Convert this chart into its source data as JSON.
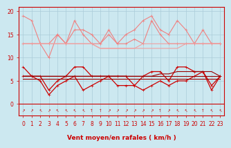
{
  "x": [
    0,
    1,
    2,
    3,
    4,
    5,
    6,
    7,
    8,
    9,
    10,
    11,
    12,
    13,
    14,
    15,
    16,
    17,
    18,
    19,
    20,
    21,
    22,
    23
  ],
  "series": [
    {
      "name": "rafales_top",
      "color": "#f08080",
      "lw": 0.8,
      "marker": "+",
      "ms": 3,
      "values": [
        19,
        18,
        13,
        13,
        15,
        13,
        18,
        15,
        13,
        13,
        16,
        13,
        15,
        16,
        18,
        19,
        16,
        15,
        18,
        16,
        13,
        16,
        13,
        13
      ]
    },
    {
      "name": "rafales_mid",
      "color": "#f08080",
      "lw": 0.8,
      "marker": "+",
      "ms": 3,
      "values": [
        13,
        13,
        13,
        10,
        15,
        13,
        16,
        16,
        15,
        13,
        15,
        13,
        13,
        14,
        13,
        18,
        15,
        13,
        13,
        13,
        13,
        13,
        13,
        13
      ]
    },
    {
      "name": "rafales_flat1",
      "color": "#f0a0a0",
      "lw": 0.8,
      "marker": null,
      "ms": 0,
      "values": [
        13,
        13,
        13,
        13,
        13,
        13,
        13,
        13,
        13,
        12,
        12,
        12,
        12,
        12,
        13,
        13,
        13,
        13,
        13,
        13,
        13,
        13,
        13,
        13
      ]
    },
    {
      "name": "rafales_flat2",
      "color": "#f0a0a0",
      "lw": 0.8,
      "marker": null,
      "ms": 0,
      "values": [
        13,
        13,
        13,
        13,
        13,
        13,
        13,
        13,
        13,
        12,
        12,
        12,
        12,
        12,
        12,
        12,
        12,
        12,
        12,
        13,
        13,
        13,
        13,
        13
      ]
    },
    {
      "name": "mean_top",
      "color": "#cc0000",
      "lw": 0.9,
      "marker": "+",
      "ms": 3,
      "values": [
        8,
        6,
        6,
        3,
        5,
        6,
        8,
        8,
        6,
        6,
        6,
        6,
        6,
        4,
        6,
        7,
        7,
        5,
        8,
        8,
        7,
        7,
        3,
        6
      ]
    },
    {
      "name": "mean_low",
      "color": "#cc0000",
      "lw": 0.9,
      "marker": "+",
      "ms": 3,
      "values": [
        6,
        6,
        5,
        2,
        4,
        5,
        6,
        3,
        4,
        5,
        6,
        4,
        4,
        4,
        3,
        4,
        5,
        4,
        5,
        5,
        6,
        7,
        4,
        6
      ]
    },
    {
      "name": "mean_flat1",
      "color": "#990000",
      "lw": 0.8,
      "marker": null,
      "ms": 0,
      "values": [
        6,
        6,
        6,
        6,
        6,
        6,
        6,
        6,
        6,
        6,
        6,
        6,
        6,
        6,
        6,
        6,
        6.5,
        6.5,
        7,
        7,
        7,
        7,
        7,
        6
      ]
    },
    {
      "name": "mean_flat2",
      "color": "#990000",
      "lw": 0.8,
      "marker": null,
      "ms": 0,
      "values": [
        6,
        6,
        6,
        6,
        6,
        6,
        6,
        6,
        6,
        6,
        6,
        6,
        6,
        6,
        6,
        6,
        6,
        6,
        6,
        6,
        6,
        6,
        6,
        6
      ]
    },
    {
      "name": "mean_flat3",
      "color": "#990000",
      "lw": 0.8,
      "marker": null,
      "ms": 0,
      "values": [
        5.5,
        5.5,
        5.5,
        5.5,
        5.5,
        5.5,
        5.5,
        5.5,
        5.5,
        5.5,
        5.5,
        5.5,
        5.5,
        5.5,
        5.5,
        5.5,
        5.5,
        5.5,
        5.5,
        5.5,
        5.5,
        5.5,
        5.5,
        5.5
      ]
    }
  ],
  "arrows": [
    45,
    45,
    135,
    45,
    135,
    135,
    135,
    135,
    90,
    90,
    45,
    45,
    45,
    45,
    45,
    45,
    90,
    45,
    135,
    135,
    135,
    90,
    135,
    135
  ],
  "xlabel": "Vent moyen/en rafales ( km/h )",
  "xlabel_color": "#cc0000",
  "xlabel_fontsize": 6.5,
  "yticks": [
    0,
    5,
    10,
    15,
    20
  ],
  "ylim": [
    -2.5,
    21
  ],
  "xlim": [
    -0.5,
    23.5
  ],
  "bg_color": "#cce8f0",
  "grid_color": "#aaccd8",
  "tick_color": "#cc0000",
  "tick_fontsize": 5.5
}
